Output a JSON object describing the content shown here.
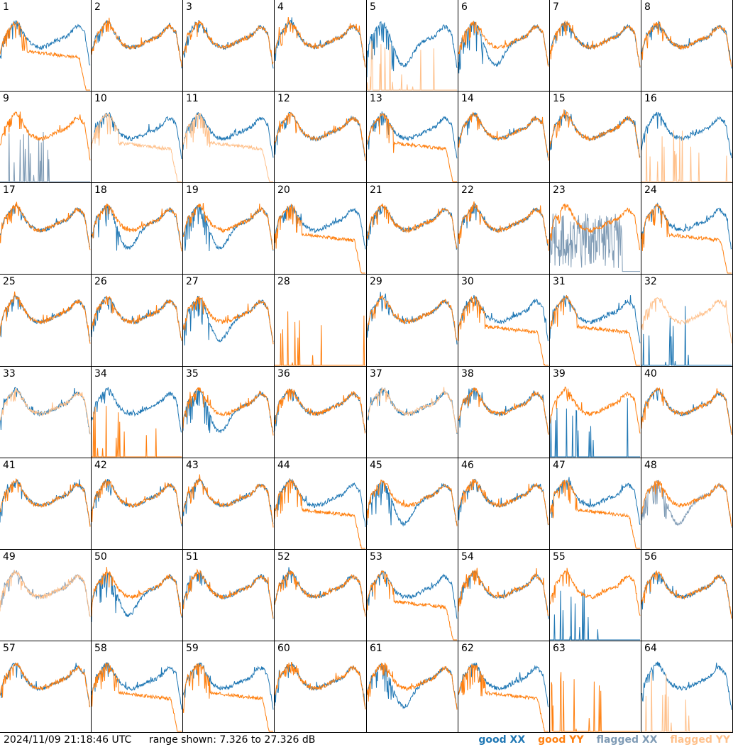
{
  "footer": {
    "timestamp": "2024/11/09 21:18:46 UTC",
    "range_text": "range shown: 7.326 to 27.326 dB"
  },
  "legend": [
    {
      "label": "good XX",
      "color": "#1f77b4"
    },
    {
      "label": "good YY",
      "color": "#ff7f0e"
    },
    {
      "label": "flagged XX",
      "color": "#7f9bb5"
    },
    {
      "label": "flagged YY",
      "color": "#ffc08a"
    }
  ],
  "chart_data": {
    "type": "line",
    "grid": {
      "rows": 8,
      "cols": 8
    },
    "y_range_db": [
      7.326,
      27.326
    ],
    "panels": [
      {
        "id": "1",
        "xx": "good",
        "yy": "good",
        "xx_shape": "normal",
        "yy_shape": "rolloff"
      },
      {
        "id": "2",
        "xx": "good",
        "yy": "good",
        "xx_shape": "normal",
        "yy_shape": "normal"
      },
      {
        "id": "3",
        "xx": "good",
        "yy": "good",
        "xx_shape": "normal",
        "yy_shape": "normal"
      },
      {
        "id": "4",
        "xx": "good",
        "yy": "good",
        "xx_shape": "normal",
        "yy_shape": "normal"
      },
      {
        "id": "5",
        "xx": "good",
        "yy": "flagged",
        "xx_shape": "dip",
        "yy_shape": "spiky-low"
      },
      {
        "id": "6",
        "xx": "good",
        "yy": "good",
        "xx_shape": "dip",
        "yy_shape": "normal"
      },
      {
        "id": "7",
        "xx": "good",
        "yy": "good",
        "xx_shape": "normal",
        "yy_shape": "normal"
      },
      {
        "id": "8",
        "xx": "good",
        "yy": "good",
        "xx_shape": "normal",
        "yy_shape": "normal"
      },
      {
        "id": "9",
        "xx": "flagged",
        "yy": "good",
        "xx_shape": "spiky-low",
        "yy_shape": "normal"
      },
      {
        "id": "10",
        "xx": "good",
        "yy": "flagged",
        "xx_shape": "normal",
        "yy_shape": "rolloff"
      },
      {
        "id": "11",
        "xx": "good",
        "yy": "flagged",
        "xx_shape": "normal",
        "yy_shape": "rolloff"
      },
      {
        "id": "12",
        "xx": "good",
        "yy": "good",
        "xx_shape": "normal",
        "yy_shape": "normal"
      },
      {
        "id": "13",
        "xx": "good",
        "yy": "good",
        "xx_shape": "normal",
        "yy_shape": "rolloff"
      },
      {
        "id": "14",
        "xx": "good",
        "yy": "good",
        "xx_shape": "normal",
        "yy_shape": "normal"
      },
      {
        "id": "15",
        "xx": "good",
        "yy": "good",
        "xx_shape": "normal",
        "yy_shape": "normal"
      },
      {
        "id": "16",
        "xx": "good",
        "yy": "flagged",
        "xx_shape": "normal",
        "yy_shape": "spiky-low"
      },
      {
        "id": "17",
        "xx": "good",
        "yy": "good",
        "xx_shape": "normal",
        "yy_shape": "normal"
      },
      {
        "id": "18",
        "xx": "good",
        "yy": "good",
        "xx_shape": "dip",
        "yy_shape": "normal"
      },
      {
        "id": "19",
        "xx": "good",
        "yy": "good",
        "xx_shape": "dip",
        "yy_shape": "normal"
      },
      {
        "id": "20",
        "xx": "good",
        "yy": "good",
        "xx_shape": "normal",
        "yy_shape": "rolloff"
      },
      {
        "id": "21",
        "xx": "good",
        "yy": "good",
        "xx_shape": "normal",
        "yy_shape": "normal"
      },
      {
        "id": "22",
        "xx": "good",
        "yy": "good",
        "xx_shape": "normal",
        "yy_shape": "normal"
      },
      {
        "id": "23",
        "xx": "flagged",
        "yy": "good",
        "xx_shape": "noisy",
        "yy_shape": "normal"
      },
      {
        "id": "24",
        "xx": "good",
        "yy": "good",
        "xx_shape": "normal",
        "yy_shape": "rolloff"
      },
      {
        "id": "25",
        "xx": "good",
        "yy": "good",
        "xx_shape": "normal",
        "yy_shape": "normal"
      },
      {
        "id": "26",
        "xx": "good",
        "yy": "good",
        "xx_shape": "normal",
        "yy_shape": "normal"
      },
      {
        "id": "27",
        "xx": "good",
        "yy": "good",
        "xx_shape": "dip",
        "yy_shape": "normal"
      },
      {
        "id": "28",
        "xx": "none",
        "yy": "good",
        "xx_shape": "none",
        "yy_shape": "spiky-low"
      },
      {
        "id": "29",
        "xx": "good",
        "yy": "good",
        "xx_shape": "normal",
        "yy_shape": "normal"
      },
      {
        "id": "30",
        "xx": "good",
        "yy": "good",
        "xx_shape": "normal",
        "yy_shape": "rolloff"
      },
      {
        "id": "31",
        "xx": "good",
        "yy": "good",
        "xx_shape": "normal",
        "yy_shape": "rolloff"
      },
      {
        "id": "32",
        "xx": "good",
        "yy": "flagged",
        "xx_shape": "spiky-low",
        "yy_shape": "normal"
      },
      {
        "id": "33",
        "xx": "good",
        "yy": "flagged",
        "xx_shape": "normal",
        "yy_shape": "normal"
      },
      {
        "id": "34",
        "xx": "good",
        "yy": "good",
        "xx_shape": "normal",
        "yy_shape": "spiky-low"
      },
      {
        "id": "35",
        "xx": "good",
        "yy": "good",
        "xx_shape": "dip",
        "yy_shape": "normal"
      },
      {
        "id": "36",
        "xx": "good",
        "yy": "good",
        "xx_shape": "normal",
        "yy_shape": "normal"
      },
      {
        "id": "37",
        "xx": "good",
        "yy": "flagged",
        "xx_shape": "normal",
        "yy_shape": "normal"
      },
      {
        "id": "38",
        "xx": "good",
        "yy": "good",
        "xx_shape": "normal",
        "yy_shape": "normal"
      },
      {
        "id": "39",
        "xx": "good",
        "yy": "good",
        "xx_shape": "spiky-low",
        "yy_shape": "normal"
      },
      {
        "id": "40",
        "xx": "good",
        "yy": "good",
        "xx_shape": "normal",
        "yy_shape": "normal"
      },
      {
        "id": "41",
        "xx": "good",
        "yy": "good",
        "xx_shape": "normal",
        "yy_shape": "normal"
      },
      {
        "id": "42",
        "xx": "good",
        "yy": "good",
        "xx_shape": "normal",
        "yy_shape": "normal"
      },
      {
        "id": "43",
        "xx": "good",
        "yy": "good",
        "xx_shape": "normal",
        "yy_shape": "normal"
      },
      {
        "id": "44",
        "xx": "good",
        "yy": "good",
        "xx_shape": "normal",
        "yy_shape": "rolloff"
      },
      {
        "id": "45",
        "xx": "good",
        "yy": "good",
        "xx_shape": "dip",
        "yy_shape": "normal"
      },
      {
        "id": "46",
        "xx": "good",
        "yy": "good",
        "xx_shape": "normal",
        "yy_shape": "normal"
      },
      {
        "id": "47",
        "xx": "good",
        "yy": "good",
        "xx_shape": "normal",
        "yy_shape": "rolloff"
      },
      {
        "id": "48",
        "xx": "flagged",
        "yy": "good",
        "xx_shape": "dip",
        "yy_shape": "normal"
      },
      {
        "id": "49",
        "xx": "flagged",
        "yy": "flagged",
        "xx_shape": "normal",
        "yy_shape": "normal"
      },
      {
        "id": "50",
        "xx": "good",
        "yy": "good",
        "xx_shape": "dip",
        "yy_shape": "normal"
      },
      {
        "id": "51",
        "xx": "good",
        "yy": "good",
        "xx_shape": "normal",
        "yy_shape": "normal"
      },
      {
        "id": "52",
        "xx": "good",
        "yy": "good",
        "xx_shape": "normal",
        "yy_shape": "normal"
      },
      {
        "id": "53",
        "xx": "good",
        "yy": "good",
        "xx_shape": "normal",
        "yy_shape": "rolloff"
      },
      {
        "id": "54",
        "xx": "good",
        "yy": "good",
        "xx_shape": "normal",
        "yy_shape": "normal"
      },
      {
        "id": "55",
        "xx": "good",
        "yy": "good",
        "xx_shape": "spiky-low",
        "yy_shape": "normal"
      },
      {
        "id": "56",
        "xx": "good",
        "yy": "good",
        "xx_shape": "normal",
        "yy_shape": "normal"
      },
      {
        "id": "57",
        "xx": "good",
        "yy": "good",
        "xx_shape": "normal",
        "yy_shape": "normal"
      },
      {
        "id": "58",
        "xx": "good",
        "yy": "good",
        "xx_shape": "normal",
        "yy_shape": "rolloff"
      },
      {
        "id": "59",
        "xx": "good",
        "yy": "good",
        "xx_shape": "normal",
        "yy_shape": "rolloff"
      },
      {
        "id": "60",
        "xx": "good",
        "yy": "good",
        "xx_shape": "normal",
        "yy_shape": "normal"
      },
      {
        "id": "61",
        "xx": "good",
        "yy": "good",
        "xx_shape": "dip",
        "yy_shape": "normal"
      },
      {
        "id": "62",
        "xx": "good",
        "yy": "good",
        "xx_shape": "normal",
        "yy_shape": "rolloff"
      },
      {
        "id": "63",
        "xx": "none",
        "yy": "good",
        "xx_shape": "none",
        "yy_shape": "spiky-low"
      },
      {
        "id": "64",
        "xx": "good",
        "yy": "flagged",
        "xx_shape": "normal",
        "yy_shape": "spiky-low"
      }
    ]
  }
}
